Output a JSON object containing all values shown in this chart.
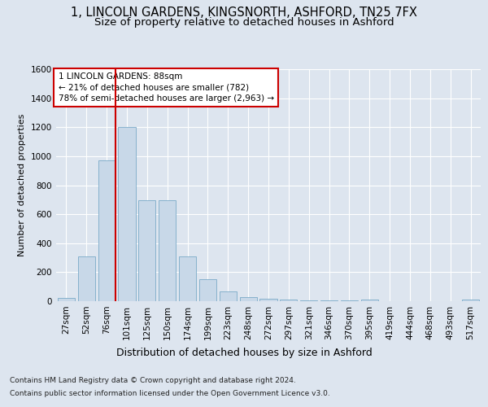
{
  "title1": "1, LINCOLN GARDENS, KINGSNORTH, ASHFORD, TN25 7FX",
  "title2": "Size of property relative to detached houses in Ashford",
  "xlabel": "Distribution of detached houses by size in Ashford",
  "ylabel": "Number of detached properties",
  "categories": [
    "27sqm",
    "52sqm",
    "76sqm",
    "101sqm",
    "125sqm",
    "150sqm",
    "174sqm",
    "199sqm",
    "223sqm",
    "248sqm",
    "272sqm",
    "297sqm",
    "321sqm",
    "346sqm",
    "370sqm",
    "395sqm",
    "419sqm",
    "444sqm",
    "468sqm",
    "493sqm",
    "517sqm"
  ],
  "values": [
    25,
    310,
    970,
    1200,
    695,
    695,
    310,
    150,
    65,
    30,
    18,
    12,
    5,
    5,
    5,
    12,
    2,
    2,
    2,
    2,
    12
  ],
  "bar_color": "#c8d8e8",
  "bar_edge_color": "#7aaac8",
  "vline_bin_index": 2,
  "vline_color": "#cc0000",
  "annotation_box_text": "1 LINCOLN GARDENS: 88sqm\n← 21% of detached houses are smaller (782)\n78% of semi-detached houses are larger (2,963) →",
  "annotation_box_color": "#cc0000",
  "ylim": [
    0,
    1600
  ],
  "yticks": [
    0,
    200,
    400,
    600,
    800,
    1000,
    1200,
    1400,
    1600
  ],
  "background_color": "#dde5ef",
  "plot_bg_color": "#dde5ef",
  "footer_line1": "Contains HM Land Registry data © Crown copyright and database right 2024.",
  "footer_line2": "Contains public sector information licensed under the Open Government Licence v3.0.",
  "title1_fontsize": 10.5,
  "title2_fontsize": 9.5,
  "xlabel_fontsize": 9,
  "ylabel_fontsize": 8,
  "tick_fontsize": 7.5,
  "footer_fontsize": 6.5
}
